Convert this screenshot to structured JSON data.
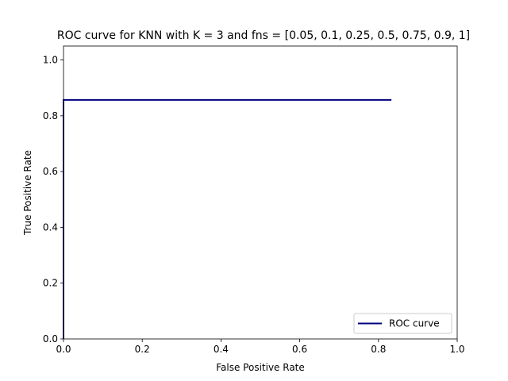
{
  "chart_data": {
    "type": "line",
    "title": "ROC curve for KNN with K = 3 and fns = [0.05, 0.1, 0.25, 0.5, 0.75, 0.9, 1]",
    "xlabel": "False Positive Rate",
    "ylabel": "True Positive Rate",
    "xlim": [
      0.0,
      1.0
    ],
    "ylim": [
      0.0,
      1.05
    ],
    "xticks": [
      0.0,
      0.2,
      0.4,
      0.6,
      0.8,
      1.0
    ],
    "yticks": [
      0.0,
      0.2,
      0.4,
      0.6,
      0.8,
      1.0
    ],
    "grid": false,
    "legend_position": "lower right",
    "series": [
      {
        "name": "ROC curve",
        "color": "#000080",
        "x": [
          0.0,
          0.0,
          0.0,
          0.833
        ],
        "y": [
          0.0,
          0.0,
          0.857,
          0.857
        ]
      }
    ]
  }
}
